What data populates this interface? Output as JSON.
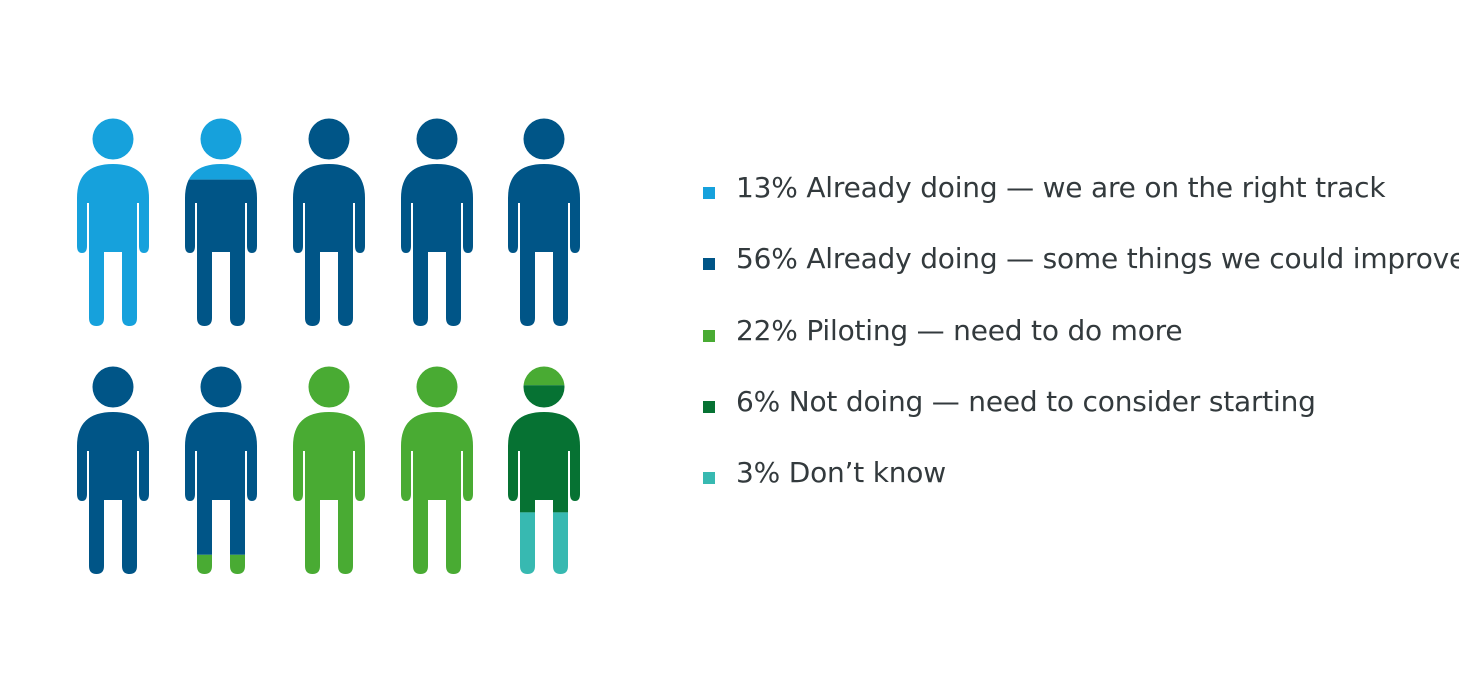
{
  "chart_data": {
    "type": "pictogram",
    "total_icons": 10,
    "rows": 2,
    "icons_per_row": 5,
    "categories": [
      {
        "label": "13% Already doing — we are on the right track",
        "value": 13,
        "color": "#16a1dc"
      },
      {
        "label": "56% Already doing — some things we could improve",
        "value": 56,
        "color": "#005587"
      },
      {
        "label": "22% Piloting — need to do more",
        "value": 22,
        "color": "#49ab33"
      },
      {
        "label": "6% Not doing — need to consider starting",
        "value": 6,
        "color": "#067233"
      },
      {
        "label": "3% Don’t know",
        "value": 3,
        "color": "#37b9b1"
      }
    ],
    "legend_position": "right"
  }
}
